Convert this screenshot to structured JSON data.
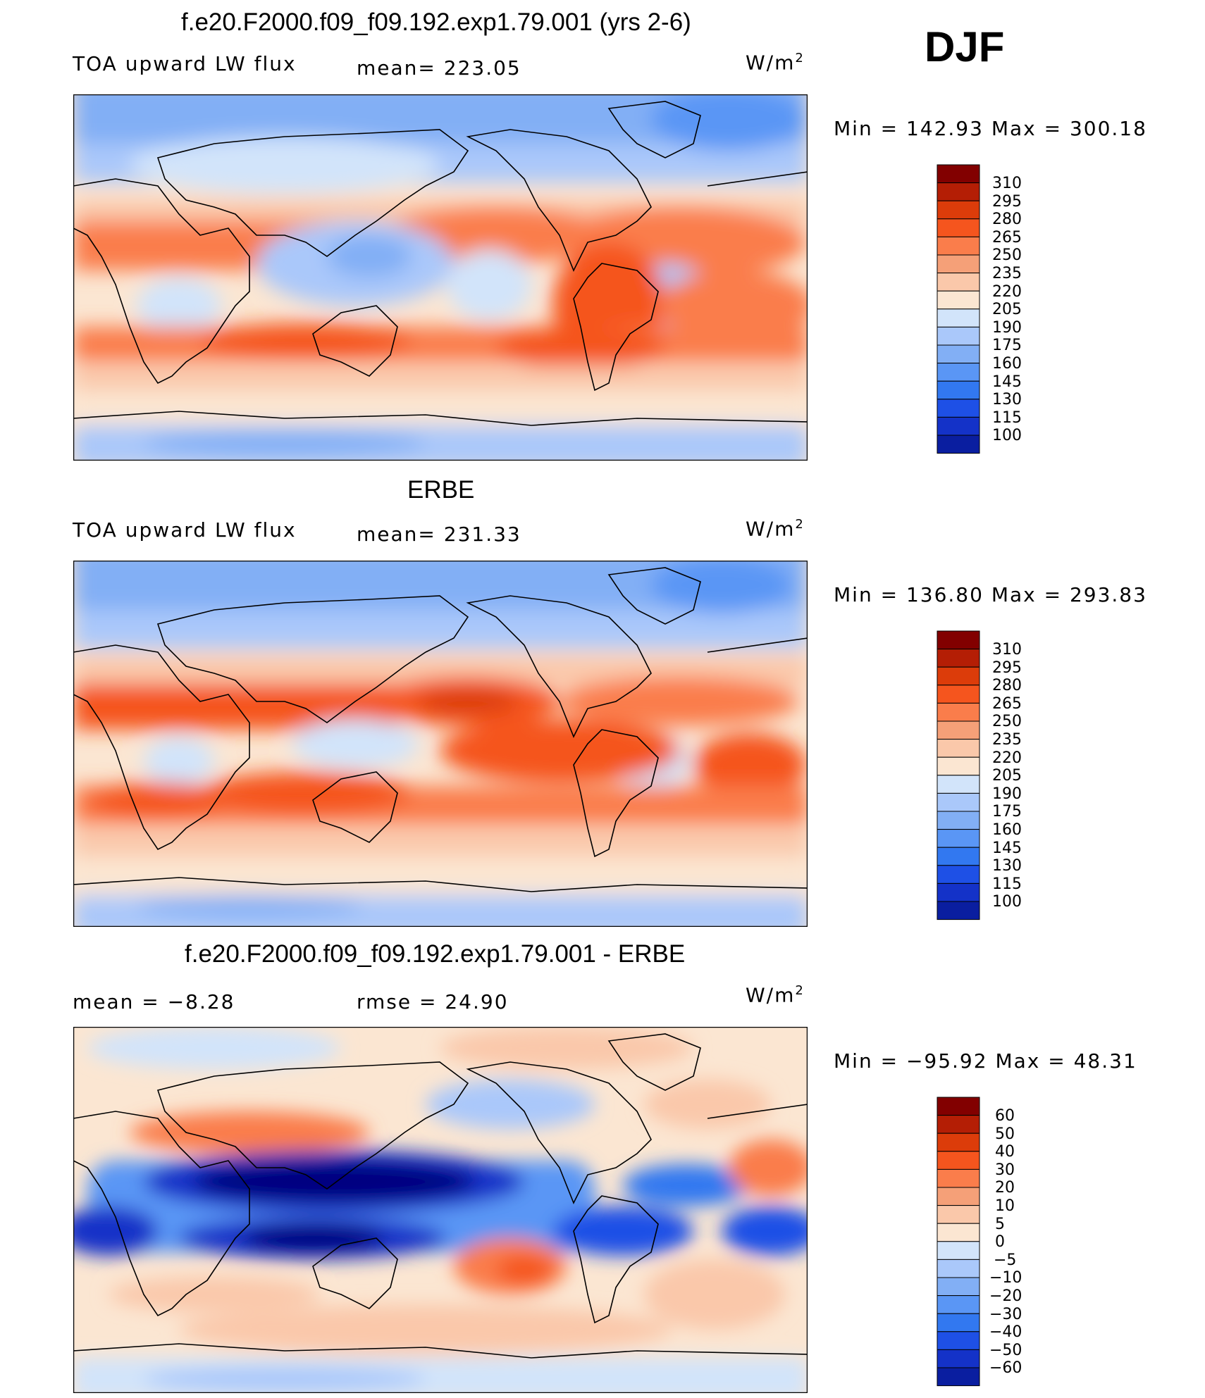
{
  "season": "DJF",
  "colors": {
    "scale": [
      "#000080",
      "#0a1ea0",
      "#1432c8",
      "#1e50e6",
      "#3278f0",
      "#5a96f5",
      "#82aff5",
      "#aac8fa",
      "#d2e4fa",
      "#fbe6d2",
      "#fac8aa",
      "#f5a078",
      "#fa7d4b",
      "#f5551e",
      "#dc3c0a",
      "#b41e05",
      "#820000"
    ]
  },
  "panels": [
    {
      "title": "f.e20.F2000.f09_f09.192.exp1.79.001 (yrs 2-6)",
      "left_label": "TOA upward LW flux",
      "center_label": "mean= 223.05",
      "units_base": "W/m",
      "units_exp": "2",
      "minmax": "Min  =  142.93  Max  =  300.18",
      "colorbar_labels": [
        "310",
        "295",
        "280",
        "265",
        "250",
        "235",
        "220",
        "205",
        "190",
        "175",
        "160",
        "145",
        "130",
        "115",
        "100"
      ]
    },
    {
      "title": "ERBE",
      "left_label": "TOA upward LW flux",
      "center_label": "mean= 231.33",
      "units_base": "W/m",
      "units_exp": "2",
      "minmax": "Min  =  136.80  Max  =  293.83",
      "colorbar_labels": [
        "310",
        "295",
        "280",
        "265",
        "250",
        "235",
        "220",
        "205",
        "190",
        "175",
        "160",
        "145",
        "130",
        "115",
        "100"
      ]
    },
    {
      "title": "f.e20.F2000.f09_f09.192.exp1.79.001 - ERBE",
      "left_label": "mean  =    −8.28",
      "center_label": "rmse  =    24.90",
      "units_base": "W/m",
      "units_exp": "2",
      "minmax": "Min  =  −95.92  Max  =    48.31",
      "colorbar_labels": [
        "60",
        "50",
        "40",
        "30",
        "20",
        "10",
        "5",
        "0",
        "−5",
        "−10",
        "−20",
        "−30",
        "−40",
        "−50",
        "−60"
      ]
    }
  ],
  "chart_data": [
    {
      "type": "heatmap",
      "title": "f.e20.F2000.f09_f09.192.exp1.79.001 (yrs 2-6)",
      "variable": "TOA upward LW flux",
      "units": "W/m2",
      "mean": 223.05,
      "min": 142.93,
      "max": 300.18,
      "levels": [
        100,
        115,
        130,
        145,
        160,
        175,
        190,
        205,
        220,
        235,
        250,
        265,
        280,
        295,
        310
      ]
    },
    {
      "type": "heatmap",
      "title": "ERBE",
      "variable": "TOA upward LW flux",
      "units": "W/m2",
      "mean": 231.33,
      "min": 136.8,
      "max": 293.83,
      "levels": [
        100,
        115,
        130,
        145,
        160,
        175,
        190,
        205,
        220,
        235,
        250,
        265,
        280,
        295,
        310
      ]
    },
    {
      "type": "heatmap",
      "title": "f.e20.F2000.f09_f09.192.exp1.79.001 - ERBE",
      "units": "W/m2",
      "mean": -8.28,
      "rmse": 24.9,
      "min": -95.92,
      "max": 48.31,
      "levels": [
        -60,
        -50,
        -40,
        -30,
        -20,
        -10,
        -5,
        0,
        5,
        10,
        20,
        30,
        40,
        50,
        60
      ]
    }
  ]
}
